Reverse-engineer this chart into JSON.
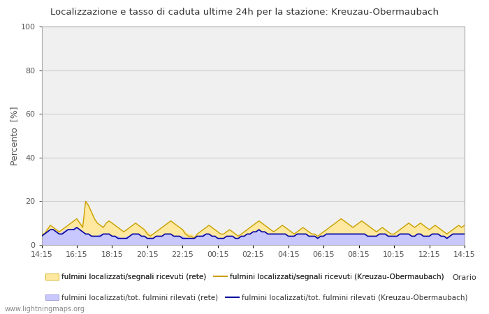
{
  "title": "Localizzazione e tasso di caduta ultime 24h per la stazione: Kreuzau-Obermaubach",
  "ylabel": "Percento  [%]",
  "ylim": [
    0,
    100
  ],
  "yticks": [
    0,
    20,
    40,
    60,
    80,
    100
  ],
  "xtick_labels": [
    "14:15",
    "16:15",
    "18:15",
    "20:15",
    "22:15",
    "00:15",
    "02:15",
    "04:15",
    "06:15",
    "08:15",
    "10:15",
    "12:15",
    "14:15"
  ],
  "background_color": "#ffffff",
  "plot_background": "#f0f0f0",
  "grid_color": "#cccccc",
  "watermark": "www.lightningmaps.org",
  "legend_items": [
    {
      "label": "fulmini localizzati/segnali ricevuti (rete)",
      "type": "fill",
      "color": "#ffe8a0"
    },
    {
      "label": "fulmini localizzati/segnali ricevuti (Kreuzau-Obermaubach)",
      "type": "line",
      "color": "#c8a000"
    },
    {
      "label": "fulmini localizzati/tot. fulmini rilevati (rete)",
      "type": "fill",
      "color": "#c8c8ff"
    },
    {
      "label": "fulmini localizzati/tot. fulmini rilevati (Kreuzau-Obermaubach)",
      "type": "line",
      "color": "#0000a0"
    }
  ],
  "n_points": 145,
  "series": {
    "fill_yellow": [
      5,
      6,
      8,
      9,
      8,
      7,
      6,
      7,
      8,
      9,
      10,
      11,
      12,
      10,
      9,
      20,
      18,
      15,
      12,
      10,
      9,
      8,
      10,
      11,
      10,
      9,
      8,
      7,
      6,
      7,
      8,
      9,
      10,
      9,
      8,
      7,
      6,
      5,
      5,
      6,
      7,
      8,
      9,
      10,
      11,
      10,
      9,
      8,
      7,
      6,
      5,
      5,
      4,
      5,
      6,
      7,
      8,
      9,
      8,
      7,
      6,
      5,
      5,
      6,
      7,
      6,
      5,
      4,
      5,
      6,
      7,
      8,
      9,
      10,
      11,
      10,
      9,
      8,
      7,
      6,
      7,
      8,
      9,
      8,
      7,
      6,
      5,
      6,
      7,
      8,
      7,
      6,
      5,
      5,
      4,
      5,
      6,
      7,
      8,
      9,
      10,
      11,
      12,
      11,
      10,
      9,
      8,
      9,
      10,
      11,
      10,
      9,
      8,
      7,
      6,
      7,
      8,
      7,
      6,
      5,
      5,
      6,
      7,
      8,
      9,
      10,
      9,
      8,
      9,
      10,
      9,
      8,
      7,
      8,
      9,
      8,
      7,
      6,
      5,
      6,
      7,
      8,
      9,
      8,
      9
    ],
    "line_yellow": [
      5,
      5,
      7,
      9,
      8,
      7,
      6,
      7,
      8,
      9,
      10,
      11,
      12,
      10,
      8,
      20,
      18,
      15,
      12,
      10,
      9,
      8,
      10,
      11,
      10,
      9,
      8,
      7,
      6,
      7,
      8,
      9,
      10,
      9,
      8,
      7,
      5,
      4,
      5,
      6,
      7,
      8,
      9,
      10,
      11,
      10,
      9,
      8,
      7,
      5,
      4,
      4,
      3,
      5,
      6,
      7,
      8,
      9,
      8,
      7,
      6,
      5,
      5,
      6,
      7,
      6,
      5,
      4,
      5,
      6,
      7,
      8,
      9,
      10,
      11,
      10,
      9,
      8,
      7,
      6,
      7,
      8,
      9,
      8,
      7,
      6,
      5,
      6,
      7,
      8,
      7,
      6,
      5,
      5,
      4,
      5,
      6,
      7,
      8,
      9,
      10,
      11,
      12,
      11,
      10,
      9,
      8,
      9,
      10,
      11,
      10,
      9,
      8,
      7,
      6,
      7,
      8,
      7,
      6,
      5,
      5,
      6,
      7,
      8,
      9,
      10,
      9,
      8,
      9,
      10,
      9,
      8,
      7,
      8,
      9,
      8,
      7,
      6,
      5,
      6,
      7,
      8,
      9,
      8,
      9
    ],
    "fill_blue": [
      4,
      5,
      6,
      7,
      7,
      6,
      5,
      6,
      7,
      7,
      7,
      8,
      8,
      7,
      6,
      5,
      5,
      4,
      4,
      4,
      5,
      5,
      5,
      5,
      4,
      4,
      4,
      3,
      3,
      4,
      4,
      5,
      5,
      5,
      4,
      4,
      3,
      3,
      3,
      4,
      4,
      4,
      5,
      5,
      5,
      4,
      4,
      4,
      4,
      3,
      3,
      3,
      3,
      4,
      4,
      5,
      5,
      5,
      4,
      4,
      3,
      3,
      3,
      4,
      4,
      4,
      3,
      3,
      4,
      4,
      5,
      5,
      6,
      6,
      7,
      6,
      6,
      5,
      5,
      5,
      5,
      5,
      5,
      5,
      4,
      4,
      4,
      5,
      5,
      5,
      5,
      4,
      4,
      4,
      3,
      4,
      4,
      5,
      5,
      5,
      5,
      5,
      5,
      5,
      5,
      5,
      5,
      5,
      5,
      5,
      5,
      4,
      4,
      4,
      4,
      5,
      5,
      5,
      4,
      4,
      4,
      4,
      5,
      5,
      5,
      5,
      4,
      4,
      5,
      5,
      4,
      4,
      4,
      5,
      5,
      5,
      4,
      4,
      3,
      4,
      5,
      5,
      5,
      5,
      5
    ],
    "line_blue": [
      4,
      5,
      6,
      7,
      7,
      6,
      5,
      5,
      6,
      7,
      7,
      7,
      8,
      7,
      6,
      5,
      5,
      4,
      4,
      4,
      4,
      5,
      5,
      5,
      4,
      4,
      3,
      3,
      3,
      3,
      4,
      5,
      5,
      5,
      4,
      4,
      3,
      3,
      3,
      4,
      4,
      4,
      5,
      5,
      5,
      4,
      4,
      4,
      3,
      3,
      3,
      3,
      3,
      4,
      4,
      4,
      5,
      5,
      4,
      4,
      3,
      3,
      3,
      4,
      4,
      4,
      3,
      3,
      4,
      4,
      5,
      5,
      6,
      6,
      7,
      6,
      6,
      5,
      5,
      5,
      5,
      5,
      5,
      5,
      4,
      4,
      4,
      5,
      5,
      5,
      5,
      4,
      4,
      4,
      3,
      4,
      4,
      5,
      5,
      5,
      5,
      5,
      5,
      5,
      5,
      5,
      5,
      5,
      5,
      5,
      5,
      4,
      4,
      4,
      4,
      5,
      5,
      5,
      4,
      4,
      4,
      4,
      5,
      5,
      5,
      5,
      4,
      4,
      5,
      5,
      4,
      4,
      4,
      5,
      5,
      5,
      4,
      4,
      3,
      4,
      5,
      5,
      5,
      5,
      5
    ]
  }
}
